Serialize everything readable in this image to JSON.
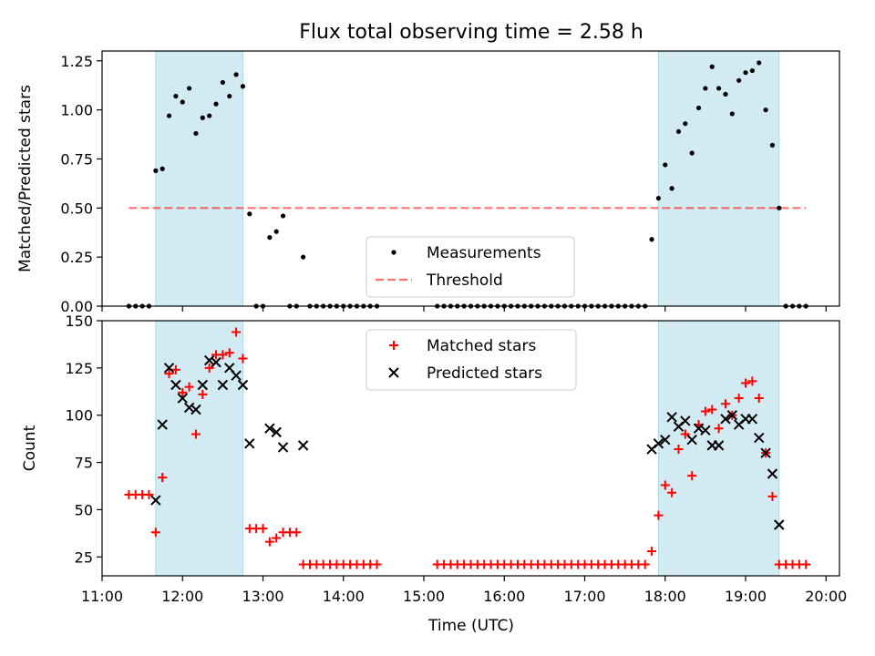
{
  "figure": {
    "title": "Flux total observing time = 2.58 h",
    "xlabel": "Time (UTC)"
  },
  "chart_data": [
    {
      "type": "scatter",
      "ylabel": "Matched/Predicted stars",
      "xlim": [
        "11:00",
        "20:10"
      ],
      "ylim": [
        0,
        1.3
      ],
      "yticks": [
        "0.00",
        "0.25",
        "0.50",
        "0.75",
        "1.00",
        "1.25"
      ],
      "grid": false,
      "legend_position": "lower center",
      "shaded_intervals": [
        [
          "11:40",
          "12:45"
        ],
        [
          "17:55",
          "19:25"
        ]
      ],
      "shade_color": "#add8e6",
      "threshold": {
        "name": "Threshold",
        "value": 0.5,
        "x_range": [
          "11:20",
          "19:45"
        ],
        "color": "#ff0000"
      },
      "series": [
        {
          "name": "Measurements",
          "marker": "dot",
          "color": "#000000",
          "points": [
            [
              "11:20",
              0
            ],
            [
              "11:25",
              0
            ],
            [
              "11:30",
              0
            ],
            [
              "11:35",
              0
            ],
            [
              "11:40",
              0.69
            ],
            [
              "11:45",
              0.7
            ],
            [
              "11:50",
              0.97
            ],
            [
              "11:55",
              1.07
            ],
            [
              "12:00",
              1.04
            ],
            [
              "12:05",
              1.11
            ],
            [
              "12:10",
              0.88
            ],
            [
              "12:15",
              0.96
            ],
            [
              "12:20",
              0.97
            ],
            [
              "12:25",
              1.03
            ],
            [
              "12:30",
              1.14
            ],
            [
              "12:35",
              1.07
            ],
            [
              "12:40",
              1.18
            ],
            [
              "12:45",
              1.12
            ],
            [
              "12:50",
              0.47
            ],
            [
              "12:55",
              0
            ],
            [
              "13:00",
              0
            ],
            [
              "13:05",
              0.35
            ],
            [
              "13:10",
              0.38
            ],
            [
              "13:15",
              0.46
            ],
            [
              "13:20",
              0
            ],
            [
              "13:25",
              0
            ],
            [
              "13:30",
              0.25
            ],
            [
              "13:35",
              0
            ],
            [
              "13:40",
              0
            ],
            [
              "13:45",
              0
            ],
            [
              "13:50",
              0
            ],
            [
              "13:55",
              0
            ],
            [
              "14:00",
              0
            ],
            [
              "14:05",
              0
            ],
            [
              "14:10",
              0
            ],
            [
              "14:15",
              0
            ],
            [
              "14:20",
              0
            ],
            [
              "14:25",
              0
            ],
            [
              "15:10",
              0
            ],
            [
              "15:15",
              0
            ],
            [
              "15:20",
              0
            ],
            [
              "15:25",
              0
            ],
            [
              "15:30",
              0
            ],
            [
              "15:35",
              0
            ],
            [
              "15:40",
              0
            ],
            [
              "15:45",
              0
            ],
            [
              "15:50",
              0
            ],
            [
              "15:55",
              0
            ],
            [
              "16:00",
              0
            ],
            [
              "16:05",
              0
            ],
            [
              "16:10",
              0
            ],
            [
              "16:15",
              0
            ],
            [
              "16:20",
              0
            ],
            [
              "16:25",
              0
            ],
            [
              "16:30",
              0
            ],
            [
              "16:35",
              0
            ],
            [
              "16:40",
              0
            ],
            [
              "16:45",
              0
            ],
            [
              "16:50",
              0
            ],
            [
              "16:55",
              0
            ],
            [
              "17:00",
              0
            ],
            [
              "17:05",
              0
            ],
            [
              "17:10",
              0
            ],
            [
              "17:15",
              0
            ],
            [
              "17:20",
              0
            ],
            [
              "17:25",
              0
            ],
            [
              "17:30",
              0
            ],
            [
              "17:35",
              0
            ],
            [
              "17:40",
              0
            ],
            [
              "17:45",
              0
            ],
            [
              "17:50",
              0.34
            ],
            [
              "17:55",
              0.55
            ],
            [
              "18:00",
              0.72
            ],
            [
              "18:05",
              0.6
            ],
            [
              "18:10",
              0.89
            ],
            [
              "18:15",
              0.93
            ],
            [
              "18:20",
              0.78
            ],
            [
              "18:25",
              1.01
            ],
            [
              "18:30",
              1.11
            ],
            [
              "18:35",
              1.22
            ],
            [
              "18:40",
              1.11
            ],
            [
              "18:45",
              1.08
            ],
            [
              "18:50",
              0.98
            ],
            [
              "18:55",
              1.15
            ],
            [
              "19:00",
              1.19
            ],
            [
              "19:05",
              1.2
            ],
            [
              "19:10",
              1.24
            ],
            [
              "19:15",
              1.0
            ],
            [
              "19:20",
              0.82
            ],
            [
              "19:25",
              0.5
            ],
            [
              "19:30",
              0
            ],
            [
              "19:35",
              0
            ],
            [
              "19:40",
              0
            ],
            [
              "19:45",
              0
            ]
          ]
        }
      ]
    },
    {
      "type": "scatter",
      "ylabel": "Count",
      "xlim": [
        "11:00",
        "20:10"
      ],
      "ylim": [
        15,
        150
      ],
      "yticks": [
        "25",
        "50",
        "75",
        "100",
        "125",
        "150"
      ],
      "xticks": [
        "11:00",
        "12:00",
        "13:00",
        "14:00",
        "15:00",
        "16:00",
        "17:00",
        "18:00",
        "19:00",
        "20:00"
      ],
      "grid": false,
      "legend_position": "upper center",
      "shaded_intervals": [
        [
          "11:40",
          "12:45"
        ],
        [
          "17:55",
          "19:25"
        ]
      ],
      "shade_color": "#add8e6",
      "series": [
        {
          "name": "Matched stars",
          "marker": "plus",
          "color": "#ff0000",
          "points": [
            [
              "11:20",
              58
            ],
            [
              "11:25",
              58
            ],
            [
              "11:30",
              58
            ],
            [
              "11:35",
              58
            ],
            [
              "11:40",
              38
            ],
            [
              "11:45",
              67
            ],
            [
              "11:50",
              122
            ],
            [
              "11:55",
              124
            ],
            [
              "12:00",
              112
            ],
            [
              "12:05",
              115
            ],
            [
              "12:10",
              90
            ],
            [
              "12:15",
              111
            ],
            [
              "12:20",
              125
            ],
            [
              "12:25",
              132
            ],
            [
              "12:30",
              132
            ],
            [
              "12:35",
              133
            ],
            [
              "12:40",
              144
            ],
            [
              "12:45",
              130
            ],
            [
              "12:50",
              40
            ],
            [
              "12:55",
              40
            ],
            [
              "13:00",
              40
            ],
            [
              "13:05",
              33
            ],
            [
              "13:10",
              35
            ],
            [
              "13:15",
              38
            ],
            [
              "13:20",
              38
            ],
            [
              "13:25",
              38
            ],
            [
              "13:30",
              21
            ],
            [
              "13:35",
              21
            ],
            [
              "13:40",
              21
            ],
            [
              "13:45",
              21
            ],
            [
              "13:50",
              21
            ],
            [
              "13:55",
              21
            ],
            [
              "14:00",
              21
            ],
            [
              "14:05",
              21
            ],
            [
              "14:10",
              21
            ],
            [
              "14:15",
              21
            ],
            [
              "14:20",
              21
            ],
            [
              "14:25",
              21
            ],
            [
              "15:10",
              21
            ],
            [
              "15:15",
              21
            ],
            [
              "15:20",
              21
            ],
            [
              "15:25",
              21
            ],
            [
              "15:30",
              21
            ],
            [
              "15:35",
              21
            ],
            [
              "15:40",
              21
            ],
            [
              "15:45",
              21
            ],
            [
              "15:50",
              21
            ],
            [
              "15:55",
              21
            ],
            [
              "16:00",
              21
            ],
            [
              "16:05",
              21
            ],
            [
              "16:10",
              21
            ],
            [
              "16:15",
              21
            ],
            [
              "16:20",
              21
            ],
            [
              "16:25",
              21
            ],
            [
              "16:30",
              21
            ],
            [
              "16:35",
              21
            ],
            [
              "16:40",
              21
            ],
            [
              "16:45",
              21
            ],
            [
              "16:50",
              21
            ],
            [
              "16:55",
              21
            ],
            [
              "17:00",
              21
            ],
            [
              "17:05",
              21
            ],
            [
              "17:10",
              21
            ],
            [
              "17:15",
              21
            ],
            [
              "17:20",
              21
            ],
            [
              "17:25",
              21
            ],
            [
              "17:30",
              21
            ],
            [
              "17:35",
              21
            ],
            [
              "17:40",
              21
            ],
            [
              "17:45",
              21
            ],
            [
              "17:50",
              28
            ],
            [
              "17:55",
              47
            ],
            [
              "18:00",
              63
            ],
            [
              "18:05",
              59
            ],
            [
              "18:10",
              82
            ],
            [
              "18:15",
              90
            ],
            [
              "18:20",
              68
            ],
            [
              "18:25",
              95
            ],
            [
              "18:30",
              102
            ],
            [
              "18:35",
              103
            ],
            [
              "18:40",
              93
            ],
            [
              "18:45",
              106
            ],
            [
              "18:50",
              100
            ],
            [
              "18:55",
              109
            ],
            [
              "19:00",
              117
            ],
            [
              "19:05",
              118
            ],
            [
              "19:10",
              109
            ],
            [
              "19:15",
              80
            ],
            [
              "19:20",
              57
            ],
            [
              "19:25",
              21
            ],
            [
              "19:30",
              21
            ],
            [
              "19:35",
              21
            ],
            [
              "19:40",
              21
            ],
            [
              "19:45",
              21
            ]
          ]
        },
        {
          "name": "Predicted stars",
          "marker": "x",
          "color": "#000000",
          "points": [
            [
              "11:40",
              55
            ],
            [
              "11:45",
              95
            ],
            [
              "11:50",
              125
            ],
            [
              "11:55",
              116
            ],
            [
              "12:00",
              109
            ],
            [
              "12:05",
              104
            ],
            [
              "12:10",
              103
            ],
            [
              "12:15",
              116
            ],
            [
              "12:20",
              129
            ],
            [
              "12:25",
              128
            ],
            [
              "12:30",
              116
            ],
            [
              "12:35",
              125
            ],
            [
              "12:40",
              121
            ],
            [
              "12:45",
              116
            ],
            [
              "12:50",
              85
            ],
            [
              "13:05",
              93
            ],
            [
              "13:10",
              91
            ],
            [
              "13:15",
              83
            ],
            [
              "13:30",
              84
            ],
            [
              "17:50",
              82
            ],
            [
              "17:55",
              85
            ],
            [
              "18:00",
              87
            ],
            [
              "18:05",
              99
            ],
            [
              "18:10",
              94
            ],
            [
              "18:15",
              97
            ],
            [
              "18:20",
              87
            ],
            [
              "18:25",
              93
            ],
            [
              "18:30",
              92
            ],
            [
              "18:35",
              84
            ],
            [
              "18:40",
              84
            ],
            [
              "18:45",
              98
            ],
            [
              "18:50",
              100
            ],
            [
              "18:55",
              95
            ],
            [
              "19:00",
              98
            ],
            [
              "19:05",
              98
            ],
            [
              "19:10",
              88
            ],
            [
              "19:15",
              80
            ],
            [
              "19:20",
              69
            ],
            [
              "19:25",
              42
            ]
          ]
        }
      ]
    }
  ]
}
